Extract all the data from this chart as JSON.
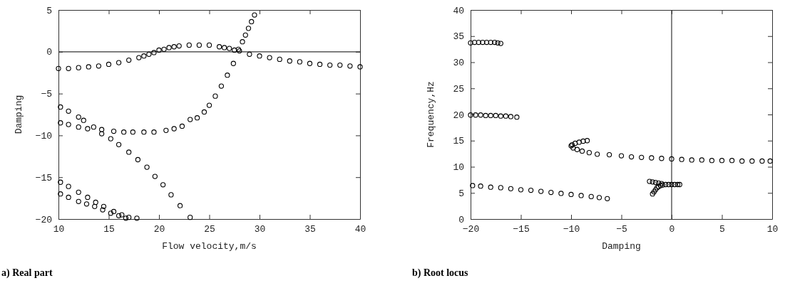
{
  "chart_data": [
    {
      "type": "scatter",
      "title": "a) Real part",
      "xlabel": "Flow velocity,m/s",
      "ylabel": "Damping",
      "xlim": [
        10,
        40
      ],
      "ylim": [
        -20,
        5
      ],
      "xticks": [
        10,
        15,
        20,
        25,
        30,
        35,
        40
      ],
      "yticks": [
        -20,
        -15,
        -10,
        -5,
        0,
        5
      ],
      "marker": "circle",
      "grid": false,
      "ref_lines": [
        {
          "axis": "y",
          "value": 0
        }
      ],
      "series": [
        {
          "color": "#000000",
          "x": [
            10,
            11,
            12,
            13,
            14,
            15,
            16,
            17,
            18,
            18.5,
            19,
            19.5,
            20,
            20.5,
            21,
            21.5,
            22,
            23,
            24,
            25,
            26,
            26.5,
            27,
            27.5,
            28,
            29,
            30,
            31,
            32,
            33,
            34,
            35,
            36,
            37,
            38,
            39,
            40
          ],
          "values": [
            -2.0,
            -2.0,
            -1.9,
            -1.8,
            -1.7,
            -1.5,
            -1.3,
            -1.0,
            -0.7,
            -0.5,
            -0.3,
            -0.1,
            0.2,
            0.3,
            0.5,
            0.6,
            0.7,
            0.8,
            0.8,
            0.8,
            0.6,
            0.5,
            0.4,
            0.2,
            0.1,
            -0.3,
            -0.5,
            -0.7,
            -0.9,
            -1.1,
            -1.2,
            -1.4,
            -1.5,
            -1.6,
            -1.6,
            -1.7,
            -1.8
          ]
        },
        {
          "color": "#000000",
          "x": [
            10.2,
            11,
            12,
            12.9,
            14.3,
            15.5,
            16.5,
            17.4,
            18.5,
            19.5,
            20.7,
            21.5,
            22.3,
            23.1,
            23.8,
            24.5,
            25.0,
            25.6,
            26.2,
            26.8,
            27.4,
            27.9,
            28.3,
            28.6,
            28.9,
            29.2,
            29.5
          ],
          "values": [
            -8.5,
            -8.7,
            -9.0,
            -9.2,
            -9.3,
            -9.5,
            -9.6,
            -9.6,
            -9.6,
            -9.6,
            -9.4,
            -9.2,
            -8.9,
            -8.1,
            -7.9,
            -7.2,
            -6.4,
            -5.3,
            -4.1,
            -2.8,
            -1.4,
            0.3,
            1.2,
            2.0,
            2.8,
            3.6,
            4.4
          ]
        },
        {
          "color": "#000000",
          "x": [
            10.2,
            11,
            12,
            12.5,
            13.5,
            14.3,
            15.2,
            16.0,
            17.0,
            17.9,
            18.8,
            19.6,
            20.4,
            21.2,
            22.1,
            23.1
          ],
          "values": [
            -6.6,
            -7.1,
            -7.8,
            -8.2,
            -9.0,
            -9.8,
            -10.4,
            -11.1,
            -12.0,
            -12.9,
            -13.8,
            -14.9,
            -15.9,
            -17.1,
            -18.4,
            -19.8
          ]
        },
        {
          "color": "#000000",
          "x": [
            10.2,
            11,
            12,
            12.9,
            13.7,
            14.5,
            15.5,
            16.3,
            17.0,
            17.8
          ],
          "values": [
            -15.6,
            -16.1,
            -16.8,
            -17.4,
            -18.0,
            -18.5,
            -19.1,
            -19.5,
            -19.8,
            -19.9
          ]
        },
        {
          "color": "#000000",
          "x": [
            10.2,
            11,
            12,
            12.8,
            13.6,
            14.4,
            15.2,
            16.0,
            16.7
          ],
          "values": [
            -17.0,
            -17.4,
            -17.9,
            -18.2,
            -18.5,
            -18.9,
            -19.3,
            -19.6,
            -19.9
          ]
        }
      ]
    },
    {
      "type": "scatter",
      "title": "b) Root locus",
      "xlabel": "Damping",
      "ylabel": "Frequency,Hz",
      "xlim": [
        -20,
        10
      ],
      "ylim": [
        0,
        40
      ],
      "xticks": [
        -20,
        -15,
        -10,
        -5,
        0,
        5,
        10
      ],
      "yticks": [
        0,
        5,
        10,
        15,
        20,
        25,
        30,
        35,
        40
      ],
      "marker": "circle",
      "grid": false,
      "ref_lines": [
        {
          "axis": "x",
          "value": 0
        }
      ],
      "series": [
        {
          "color": "#000000",
          "x": [
            -20,
            -19.6,
            -19.2,
            -18.8,
            -18.4,
            -18.0,
            -17.6,
            -17.3,
            -17.0
          ],
          "values": [
            33.7,
            33.8,
            33.8,
            33.8,
            33.8,
            33.8,
            33.8,
            33.7,
            33.6
          ]
        },
        {
          "color": "#000000",
          "x": [
            -20,
            -19.5,
            -19,
            -18.5,
            -18,
            -17.5,
            -17,
            -16.5,
            -16,
            -15.4
          ],
          "values": [
            19.9,
            19.9,
            19.9,
            19.8,
            19.8,
            19.8,
            19.7,
            19.7,
            19.6,
            19.5
          ]
        },
        {
          "color": "#000000",
          "x": [
            -19.8,
            -19,
            -18,
            -17,
            -16,
            -15,
            -14,
            -13,
            -12,
            -11,
            -10,
            -9,
            -8,
            -7.2,
            -6.4
          ],
          "values": [
            6.4,
            6.3,
            6.1,
            6.0,
            5.8,
            5.6,
            5.5,
            5.3,
            5.1,
            4.9,
            4.7,
            4.5,
            4.3,
            4.1,
            3.9
          ]
        },
        {
          "color": "#000000",
          "x": [
            -8.4,
            -8.8,
            -9.2,
            -9.6,
            -9.9,
            -10.0,
            -9.8,
            -9.4,
            -8.9,
            -8.2,
            -7.4,
            -6.2,
            -5.0,
            -4.0,
            -3.0,
            -2.0,
            -1.0,
            0.0,
            1.0,
            2.0,
            3.0,
            4.0,
            5.0,
            6.0,
            7.0,
            8.0,
            9.0,
            9.8
          ],
          "values": [
            15.0,
            14.9,
            14.7,
            14.5,
            14.2,
            14.0,
            13.6,
            13.3,
            13.0,
            12.7,
            12.4,
            12.3,
            12.1,
            11.9,
            11.8,
            11.7,
            11.6,
            11.5,
            11.4,
            11.3,
            11.3,
            11.2,
            11.2,
            11.2,
            11.1,
            11.1,
            11.1,
            11.1
          ]
        },
        {
          "color": "#000000",
          "x": [
            -1.9,
            -1.75,
            -1.6,
            -1.45,
            -1.3,
            -1.1,
            -0.9,
            -0.6,
            -0.3,
            0.0,
            0.3,
            0.6,
            0.8,
            -2.2,
            -1.9,
            -1.6,
            -1.3,
            -1.0
          ],
          "values": [
            4.8,
            5.2,
            5.6,
            6.0,
            6.2,
            6.4,
            6.5,
            6.6,
            6.6,
            6.6,
            6.6,
            6.6,
            6.6,
            7.2,
            7.1,
            7.0,
            6.9,
            6.8
          ]
        }
      ]
    }
  ]
}
